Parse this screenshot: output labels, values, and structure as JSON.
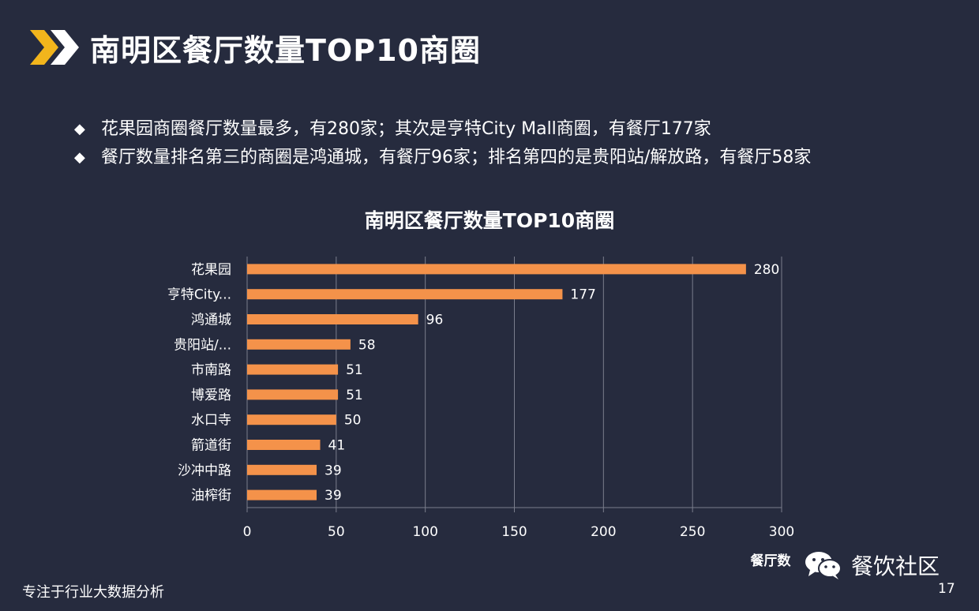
{
  "slide": {
    "title": "南明区餐厅数量TOP10商圈",
    "bullets": [
      "花果园商圈餐厅数量最多，有280家；其次是亨特City Mall商圈，有餐厅177家",
      "餐厅数量排名第三的商圈是鸿通城，有餐厅96家；排名第四的是贵阳站/解放路，有餐厅58家"
    ],
    "bullet_icon": "diamond-bullet-icon",
    "logo_icon": "double-chevron-icon",
    "footer_text": "专注于行业大数据分析",
    "watermark_icon": "wechat-icon",
    "watermark_text": "餐饮社区",
    "page_number": "17"
  },
  "colors": {
    "background": "#262b3e",
    "bar": "#f4924a",
    "grid": "#7a7e8c",
    "chevron": "#f2b51c"
  },
  "chart_data": {
    "type": "bar",
    "orientation": "horizontal",
    "title": "南明区餐厅数量TOP10商圈",
    "categories": [
      "花果园",
      "亨特City...",
      "鸿通城",
      "贵阳站/...",
      "市南路",
      "博爱路",
      "水口寺",
      "箭道街",
      "沙冲中路",
      "油榨街"
    ],
    "values": [
      280,
      177,
      96,
      58,
      51,
      51,
      50,
      41,
      39,
      39
    ],
    "xlabel": "餐厅数",
    "ylabel": "",
    "xlim": [
      0,
      300
    ],
    "xticks": [
      0,
      50,
      100,
      150,
      200,
      250,
      300
    ],
    "grid": true,
    "data_labels": true
  }
}
